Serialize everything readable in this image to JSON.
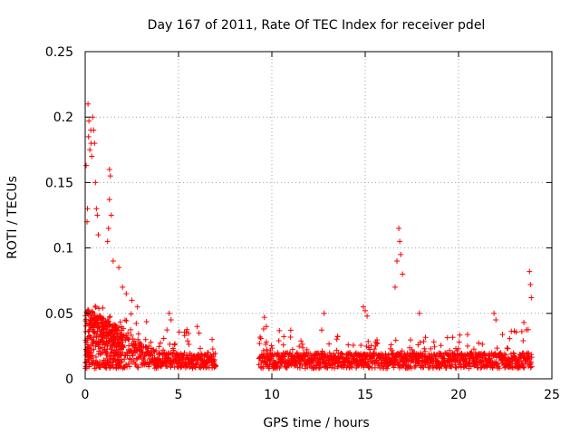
{
  "chart_data": {
    "type": "scatter",
    "title": "Day 167 of 2011, Rate Of TEC Index for receiver pdel",
    "xlabel": "GPS time / hours",
    "ylabel": "ROTI / TECUs",
    "xlim": [
      0,
      25
    ],
    "ylim": [
      0,
      0.25
    ],
    "x_ticks": [
      0,
      5,
      10,
      15,
      20,
      25
    ],
    "x_tick_labels": [
      "0",
      "5",
      "10",
      "15",
      "20",
      "25"
    ],
    "y_ticks": [
      0,
      0.05,
      0.1,
      0.15,
      0.2,
      0.25
    ],
    "y_tick_labels": [
      "0",
      "0.05",
      "0.1",
      "0.15",
      "0.2",
      "0.25"
    ],
    "grid": true,
    "marker": "+",
    "series": [
      {
        "name": "ROTI",
        "color": "#ff0000",
        "segments": [
          {
            "t_start": 0.0,
            "t_end": 7.0
          },
          {
            "t_start": 9.3,
            "t_end": 23.9
          }
        ],
        "x": [
          0.05,
          0.1,
          0.12,
          0.15,
          0.18,
          0.2,
          0.25,
          0.3,
          0.32,
          0.35,
          0.4,
          0.45,
          0.5,
          0.55,
          0.6,
          0.65,
          0.7,
          1.3,
          1.35,
          1.3,
          1.4,
          1.25,
          1.2,
          1.5,
          1.8,
          2.0,
          2.2,
          2.5,
          2.8,
          4.5,
          4.6,
          6.0,
          6.1,
          6.8,
          9.6,
          9.7,
          12.8,
          14.9,
          15.0,
          15.1,
          16.6,
          16.7,
          16.8,
          16.85,
          16.9,
          17.0,
          17.9,
          21.9,
          22.0,
          23.5,
          23.8,
          23.85,
          23.9
        ],
        "y": [
          0.163,
          0.12,
          0.13,
          0.21,
          0.185,
          0.197,
          0.175,
          0.19,
          0.18,
          0.17,
          0.2,
          0.19,
          0.18,
          0.15,
          0.13,
          0.125,
          0.11,
          0.16,
          0.155,
          0.137,
          0.125,
          0.115,
          0.105,
          0.09,
          0.085,
          0.07,
          0.065,
          0.06,
          0.055,
          0.05,
          0.045,
          0.04,
          0.035,
          0.03,
          0.047,
          0.04,
          0.05,
          0.055,
          0.052,
          0.048,
          0.07,
          0.09,
          0.115,
          0.105,
          0.095,
          0.08,
          0.05,
          0.05,
          0.045,
          0.043,
          0.082,
          0.072,
          0.062
        ]
      }
    ]
  }
}
